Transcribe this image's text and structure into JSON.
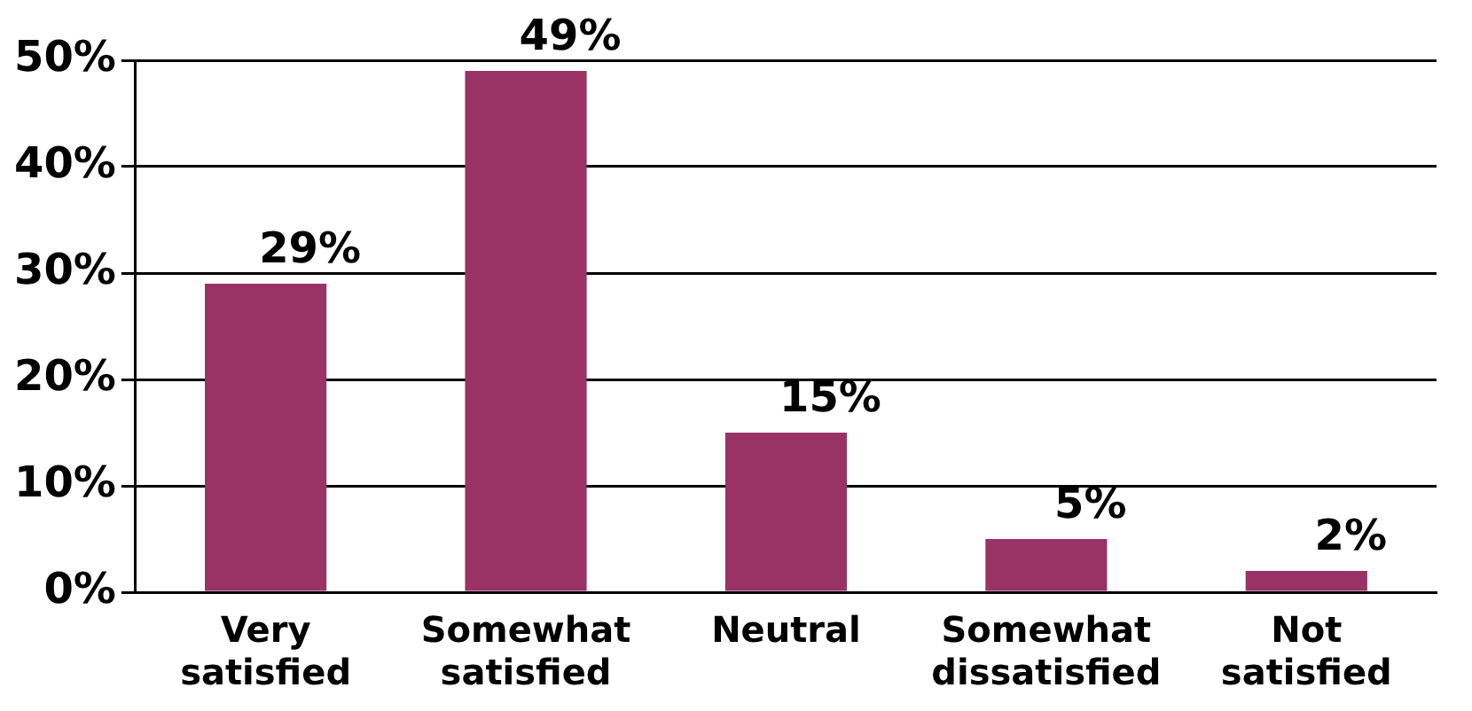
{
  "chart_data": {
    "type": "bar",
    "categories": [
      [
        "Very",
        "satisfied"
      ],
      [
        "Somewhat",
        "satisfied"
      ],
      [
        "Neutral"
      ],
      [
        "Somewhat",
        "dissatisfied"
      ],
      [
        "Not",
        "satisfied"
      ]
    ],
    "values": [
      29,
      49,
      15,
      5,
      2
    ],
    "value_labels": [
      "29%",
      "49%",
      "15%",
      "5%",
      "2%"
    ],
    "color": "#993366",
    "ylim": [
      0,
      50
    ],
    "yticks": [
      {
        "value": 0,
        "label": "0%"
      },
      {
        "value": 10,
        "label": "10%"
      },
      {
        "value": 20,
        "label": "20%"
      },
      {
        "value": 30,
        "label": "30%"
      },
      {
        "value": 40,
        "label": "40%"
      },
      {
        "value": 50,
        "label": "50%"
      }
    ],
    "grid": "y"
  }
}
